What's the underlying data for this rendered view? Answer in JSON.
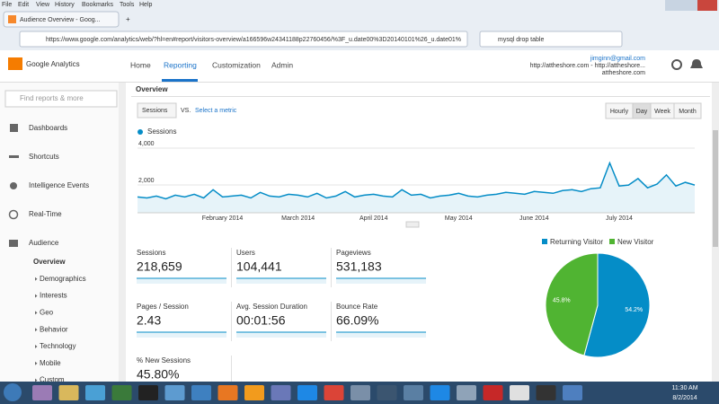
{
  "browser": {
    "menu": [
      "File",
      "Edit",
      "View",
      "History",
      "Bookmarks",
      "Tools",
      "Help"
    ],
    "tab_title": "Audience Overview - Goog...",
    "url": "https://www.google.com/analytics/web/?hl=en#report/visitors-overview/a166596w24341188p22760456/%3F_u.date00%3D20140101%26_u.date01%",
    "search": "mysql drop table"
  },
  "ga": {
    "logo": "Google Analytics",
    "nav": [
      "Home",
      "Reporting",
      "Customization",
      "Admin"
    ],
    "account": {
      "email": "jimginn@gmail.com",
      "site": "http://attheshore.com - http://attheshore...",
      "site_short": "attheshore.com"
    }
  },
  "sidebar": {
    "search_placeholder": "Find reports & more",
    "items": [
      "Dashboards",
      "Shortcuts",
      "Intelligence Events",
      "Real-Time",
      "Audience"
    ],
    "audience_items": [
      "Overview",
      "Demographics",
      "Interests",
      "Geo",
      "Behavior",
      "Technology",
      "Mobile",
      "Custom"
    ]
  },
  "overview": {
    "tab": "Overview",
    "metric_select": "Sessions",
    "vs": "VS.",
    "select_metric": "Select a metric",
    "granularity": [
      "Hourly",
      "Day",
      "Week",
      "Month"
    ]
  },
  "chart_data": [
    {
      "type": "line",
      "series": [
        {
          "name": "Sessions",
          "color": "#058dc7",
          "values": [
            1100,
            1050,
            1150,
            1000,
            1200,
            1100,
            1250,
            1050,
            1500,
            1100,
            1150,
            1200,
            1050,
            1350,
            1150,
            1100,
            1250,
            1200,
            1100,
            1300,
            1050,
            1150,
            1400,
            1100,
            1200,
            1250,
            1150,
            1100,
            1500,
            1200,
            1250,
            1050,
            1150,
            1200,
            1300,
            1150,
            1100,
            1200,
            1250,
            1350,
            1300,
            1250,
            1400,
            1350,
            1300,
            1450,
            1500,
            1400,
            1550,
            1600,
            2950,
            1700,
            1750,
            2100,
            1600,
            1800,
            2300,
            1700,
            1900,
            1750
          ]
        }
      ],
      "categories": [
        null,
        null,
        null,
        null,
        null,
        null,
        null,
        null,
        null,
        "February 2014",
        null,
        null,
        null,
        null,
        null,
        null,
        null,
        "March 2014",
        null,
        null,
        null,
        null,
        null,
        null,
        null,
        "April 2014",
        null,
        null,
        null,
        null,
        null,
        null,
        null,
        null,
        "May 2014",
        null,
        null,
        null,
        null,
        null,
        null,
        null,
        "June 2014",
        null,
        null,
        null,
        null,
        null,
        null,
        null,
        null,
        "July 2014",
        null,
        null,
        null,
        null,
        null,
        null,
        null,
        null
      ],
      "ylim": [
        0,
        4000
      ],
      "yticks": [
        {
          "value": 2000,
          "label": "2,000"
        },
        {
          "value": 4000,
          "label": "4,000"
        }
      ],
      "grid": true
    },
    {
      "type": "pie",
      "categories": [
        "Returning Visitor",
        "New Visitor"
      ],
      "values": [
        54.2,
        45.8
      ],
      "value_labels": [
        "54.2%",
        "45.8%"
      ],
      "colors": [
        "#058dc7",
        "#50b432"
      ],
      "legend": "top"
    }
  ],
  "metrics": [
    {
      "label": "Sessions",
      "value": "218,659"
    },
    {
      "label": "Users",
      "value": "104,441"
    },
    {
      "label": "Pageviews",
      "value": "531,183"
    },
    {
      "label": "Pages / Session",
      "value": "2.43"
    },
    {
      "label": "Avg. Session Duration",
      "value": "00:01:56"
    },
    {
      "label": "Bounce Rate",
      "value": "66.09%"
    },
    {
      "label": "% New Sessions",
      "value": "45.80%"
    }
  ],
  "taskbar": {
    "time": "11:30 AM",
    "date": "8/2/2014"
  }
}
